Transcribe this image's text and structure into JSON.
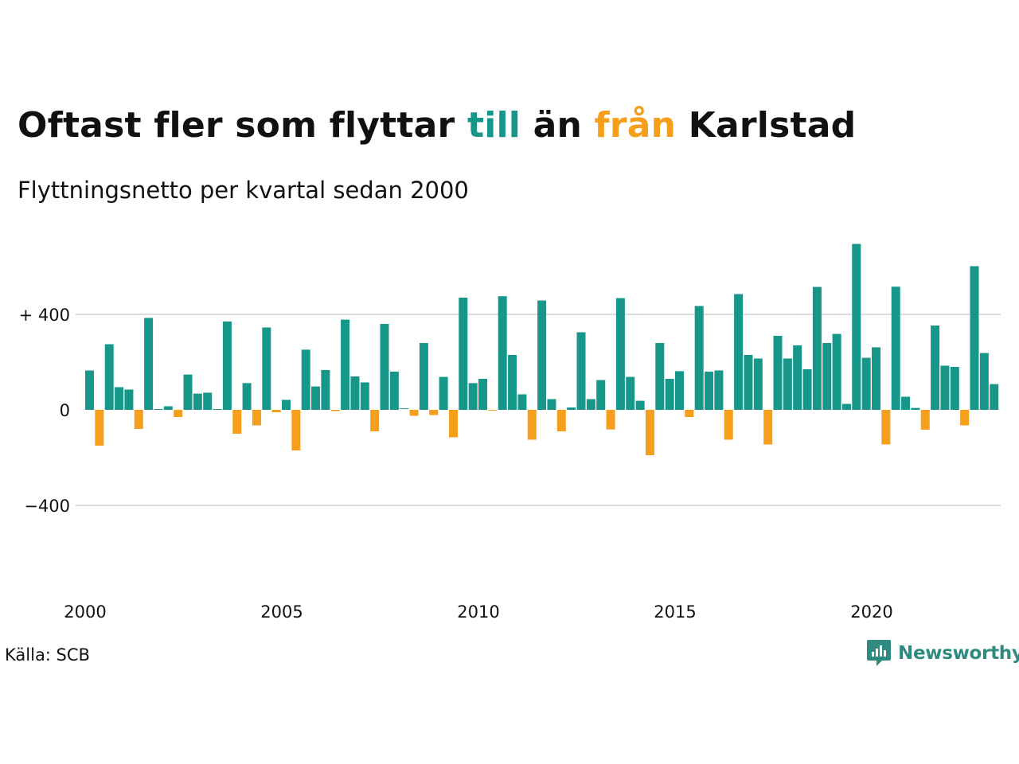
{
  "title": {
    "part1": "Oftast fler som flyttar ",
    "till": "till",
    "part2": " än ",
    "fran": "från",
    "part3": " Karlstad"
  },
  "subtitle": "Flyttningsnetto per kvartal sedan 2000",
  "source": "Källa: SCB",
  "brand": "Newsworthy",
  "colors": {
    "positive": "#17968a",
    "negative": "#f59f1d",
    "grid": "#dddddd",
    "text": "#111111"
  },
  "chart_data": {
    "type": "bar",
    "ylim": [
      -600,
      700
    ],
    "y_ticks": [
      {
        "value": 400,
        "label": "+ 400"
      },
      {
        "value": 0,
        "label": "0"
      },
      {
        "value": -400,
        "label": "−400"
      }
    ],
    "x_ticks": [
      "2000",
      "2005",
      "2010",
      "2015",
      "2020"
    ],
    "grid": true,
    "categories": [
      "2000K1",
      "2000K2",
      "2000K3",
      "2000K4",
      "2001K1",
      "2001K2",
      "2001K3",
      "2001K4",
      "2002K1",
      "2002K2",
      "2002K3",
      "2002K4",
      "2003K1",
      "2003K2",
      "2003K3",
      "2003K4",
      "2004K1",
      "2004K2",
      "2004K3",
      "2004K4",
      "2005K1",
      "2005K2",
      "2005K3",
      "2005K4",
      "2006K1",
      "2006K2",
      "2006K3",
      "2006K4",
      "2007K1",
      "2007K2",
      "2007K3",
      "2007K4",
      "2008K1",
      "2008K2",
      "2008K3",
      "2008K4",
      "2009K1",
      "2009K2",
      "2009K3",
      "2009K4",
      "2010K1",
      "2010K2",
      "2010K3",
      "2010K4",
      "2011K1",
      "2011K2",
      "2011K3",
      "2011K4",
      "2012K1",
      "2012K2",
      "2012K3",
      "2012K4",
      "2013K1",
      "2013K2",
      "2013K3",
      "2013K4",
      "2014K1",
      "2014K2",
      "2014K3",
      "2014K4",
      "2015K1",
      "2015K2",
      "2015K3",
      "2015K4",
      "2016K1",
      "2016K2",
      "2016K3",
      "2016K4",
      "2017K1",
      "2017K2",
      "2017K3",
      "2017K4",
      "2018K1",
      "2018K2",
      "2018K3",
      "2018K4",
      "2019K1",
      "2019K2",
      "2019K3",
      "2019K4",
      "2020K1",
      "2020K2",
      "2020K3",
      "2020K4",
      "2021K1",
      "2021K2",
      "2021K3",
      "2021K4",
      "2022K1",
      "2022K2",
      "2022K3",
      "2022K4",
      "2023K1"
    ],
    "values": [
      165,
      -150,
      275,
      95,
      85,
      -80,
      385,
      0,
      15,
      -30,
      148,
      68,
      72,
      0,
      370,
      -100,
      112,
      -65,
      345,
      -10,
      42,
      -170,
      252,
      98,
      167,
      -5,
      378,
      140,
      115,
      -90,
      360,
      160,
      3,
      -25,
      280,
      -22,
      138,
      -115,
      470,
      112,
      130,
      -3,
      476,
      230,
      65,
      -125,
      458,
      45,
      -90,
      10,
      325,
      45,
      125,
      -82,
      468,
      138,
      38,
      -190,
      280,
      130,
      162,
      -30,
      435,
      160,
      165,
      -125,
      485,
      230,
      215,
      -145,
      310,
      215,
      270,
      170,
      515,
      280,
      318,
      25,
      695,
      218,
      262,
      -145,
      516,
      55,
      8,
      -83,
      353,
      185,
      180,
      -65,
      602,
      238,
      108
    ]
  }
}
